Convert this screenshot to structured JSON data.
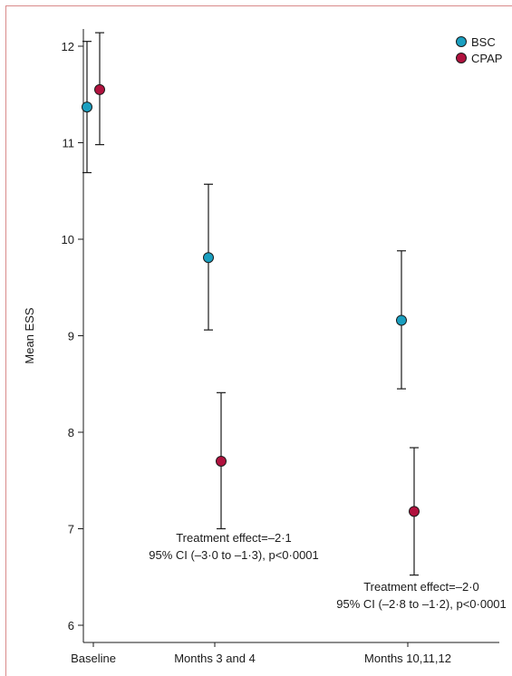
{
  "chart_data": {
    "type": "scatter",
    "ylabel": "Mean ESS",
    "xlabel": "",
    "ylim": [
      6,
      12.2
    ],
    "yticks": [
      6,
      7,
      8,
      9,
      10,
      11,
      12
    ],
    "categories": [
      "Baseline",
      "Months 3 and 4",
      "Months 10,11,12"
    ],
    "legend_position": "top-right",
    "series": [
      {
        "name": "BSC",
        "color": "#1a9fc0",
        "points": [
          {
            "category": "Baseline",
            "mean": 11.37,
            "ci_low": 10.69,
            "ci_high": 12.05
          },
          {
            "category": "Months 3 and 4",
            "mean": 9.81,
            "ci_low": 9.06,
            "ci_high": 10.57
          },
          {
            "category": "Months 10,11,12",
            "mean": 9.16,
            "ci_low": 8.45,
            "ci_high": 9.88
          }
        ]
      },
      {
        "name": "CPAP",
        "color": "#b0123e",
        "points": [
          {
            "category": "Baseline",
            "mean": 11.55,
            "ci_low": 10.98,
            "ci_high": 12.14
          },
          {
            "category": "Months 3 and 4",
            "mean": 7.7,
            "ci_low": 7.0,
            "ci_high": 8.41
          },
          {
            "category": "Months 10,11,12",
            "mean": 7.18,
            "ci_low": 6.52,
            "ci_high": 7.84
          }
        ]
      }
    ],
    "annotations": [
      {
        "category": "Months 3 and 4",
        "lines": [
          "Treatment effect=–2·1",
          "95% CI (–3·0 to –1·3), p<0·0001"
        ]
      },
      {
        "category": "Months 10,11,12",
        "lines": [
          "Treatment effect=–2·0",
          "95% CI (–2·8 to –1·2), p<0·0001"
        ]
      }
    ]
  }
}
